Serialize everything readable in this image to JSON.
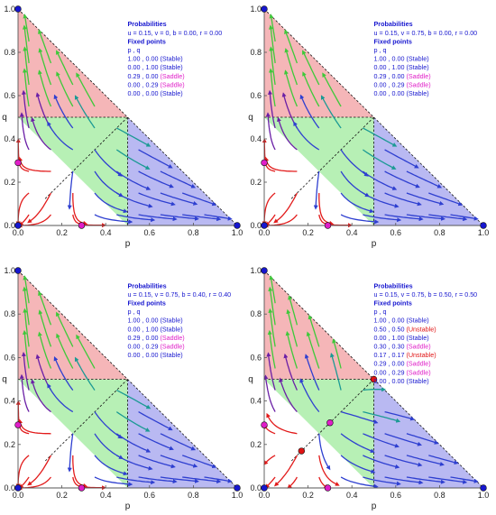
{
  "colors": {
    "region_red": "#f5b6b8",
    "region_green": "#b7f0b5",
    "region_blue": "#b9b9f2",
    "stable": "#1717cf",
    "saddle": "#e01ec8",
    "unstable": "#e01313",
    "stream_red": "#e21b1b",
    "stream_purple": "#6a1fa6",
    "stream_blue": "#2e3fd0",
    "stream_teal": "#1b9a94",
    "stream_green": "#3ec93a"
  },
  "chart_data": [
    {
      "type": "streamplot",
      "xlabel": "p",
      "ylabel": "q",
      "xlim": [
        0,
        1
      ],
      "ylim": [
        0,
        1
      ],
      "xticks": [
        "0.0",
        "0.2",
        "0.4",
        "0.6",
        "0.8",
        "1.0"
      ],
      "yticks": [
        "0.0",
        "0.2",
        "0.4",
        "0.6",
        "0.8",
        "1.0"
      ],
      "info_title": "Probabilities",
      "params": "u = 0.15, v = 0, b = 0.00, r = 0.00",
      "fixed_title": "Fixed points",
      "fixed_header": "p     , q",
      "fixed_points": [
        {
          "label": "1.00 , 0.00 (Stable)",
          "p": 1.0,
          "q": 0.0,
          "type": "stable"
        },
        {
          "label": "0.00 , 1.00 (Stable)",
          "p": 0.0,
          "q": 1.0,
          "type": "stable"
        },
        {
          "label": "0.29 , 0.00 (Saddle)",
          "p": 0.29,
          "q": 0.0,
          "type": "saddle"
        },
        {
          "label": "0.00 , 0.29 (Saddle)",
          "p": 0.0,
          "q": 0.29,
          "type": "saddle"
        },
        {
          "label": "0.00 , 0.00 (Stable)",
          "p": 0.0,
          "q": 0.0,
          "type": "stable"
        }
      ]
    },
    {
      "type": "streamplot",
      "xlabel": "p",
      "ylabel": "q",
      "xlim": [
        0,
        1
      ],
      "ylim": [
        0,
        1
      ],
      "xticks": [
        "0.0",
        "0.2",
        "0.4",
        "0.6",
        "0.8",
        "1.0"
      ],
      "yticks": [
        "0.0",
        "0.2",
        "0.4",
        "0.6",
        "0.8",
        "1.0"
      ],
      "info_title": "Probabilities",
      "params": "u = 0.15, v = 0.75, b = 0.00, r = 0.00",
      "fixed_title": "Fixed points",
      "fixed_header": "p     , q",
      "fixed_points": [
        {
          "label": "1.00 , 0.00 (Stable)",
          "p": 1.0,
          "q": 0.0,
          "type": "stable"
        },
        {
          "label": "0.00 , 1.00 (Stable)",
          "p": 0.0,
          "q": 1.0,
          "type": "stable"
        },
        {
          "label": "0.29 , 0.00 (Saddle)",
          "p": 0.29,
          "q": 0.0,
          "type": "saddle"
        },
        {
          "label": "0.00 , 0.29 (Saddle)",
          "p": 0.0,
          "q": 0.29,
          "type": "saddle"
        },
        {
          "label": "0.00 , 0.00 (Stable)",
          "p": 0.0,
          "q": 0.0,
          "type": "stable"
        }
      ]
    },
    {
      "type": "streamplot",
      "xlabel": "p",
      "ylabel": "q",
      "xlim": [
        0,
        1
      ],
      "ylim": [
        0,
        1
      ],
      "xticks": [
        "0.0",
        "0.2",
        "0.4",
        "0.6",
        "0.8",
        "1.0"
      ],
      "yticks": [
        "0.0",
        "0.2",
        "0.4",
        "0.6",
        "0.8",
        "1.0"
      ],
      "info_title": "Probabilities",
      "params": "u = 0.15, v = 0.75, b = 0.40, r = 0.40",
      "fixed_title": "Fixed points",
      "fixed_header": "p     , q",
      "fixed_points": [
        {
          "label": "1.00 , 0.00 (Stable)",
          "p": 1.0,
          "q": 0.0,
          "type": "stable"
        },
        {
          "label": "0.00 , 1.00 (Stable)",
          "p": 0.0,
          "q": 1.0,
          "type": "stable"
        },
        {
          "label": "0.29 , 0.00 (Saddle)",
          "p": 0.29,
          "q": 0.0,
          "type": "saddle"
        },
        {
          "label": "0.00 , 0.29 (Saddle)",
          "p": 0.0,
          "q": 0.29,
          "type": "saddle"
        },
        {
          "label": "0.00 , 0.00 (Stable)",
          "p": 0.0,
          "q": 0.0,
          "type": "stable"
        }
      ]
    },
    {
      "type": "streamplot",
      "xlabel": "p",
      "ylabel": "q",
      "xlim": [
        0,
        1
      ],
      "ylim": [
        0,
        1
      ],
      "xticks": [
        "0.0",
        "0.2",
        "0.4",
        "0.6",
        "0.8",
        "1.0"
      ],
      "yticks": [
        "0.0",
        "0.2",
        "0.4",
        "0.6",
        "0.8",
        "1.0"
      ],
      "info_title": "Probabilities",
      "params": "u = 0.15, v = 0.75, b = 0.50, r = 0.50",
      "fixed_title": "Fixed points",
      "fixed_header": "p     , q",
      "fixed_points": [
        {
          "label": "1.00 , 0.00 (Stable)",
          "p": 1.0,
          "q": 0.0,
          "type": "stable"
        },
        {
          "label": "0.50 , 0.50 (Unstable)",
          "p": 0.5,
          "q": 0.5,
          "type": "unstable"
        },
        {
          "label": "0.00 , 1.00 (Stable)",
          "p": 0.0,
          "q": 1.0,
          "type": "stable"
        },
        {
          "label": "0.30 , 0.30 (Saddle)",
          "p": 0.3,
          "q": 0.3,
          "type": "saddle"
        },
        {
          "label": "0.17 , 0.17 (Unstable)",
          "p": 0.17,
          "q": 0.17,
          "type": "unstable"
        },
        {
          "label": "0.29 , 0.00 (Saddle)",
          "p": 0.29,
          "q": 0.0,
          "type": "saddle"
        },
        {
          "label": "0.00 , 0.29 (Saddle)",
          "p": 0.0,
          "q": 0.29,
          "type": "saddle"
        },
        {
          "label": "0.00 , 0.00 (Stable)",
          "p": 0.0,
          "q": 0.0,
          "type": "stable"
        }
      ]
    }
  ]
}
